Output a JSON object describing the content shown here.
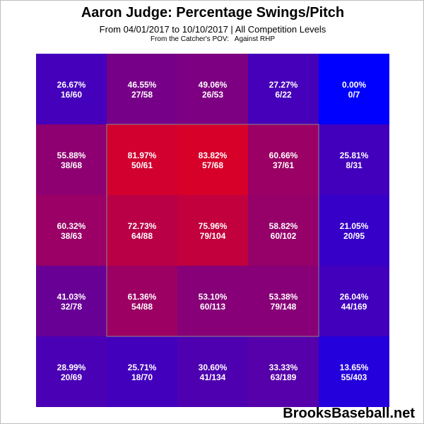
{
  "chart_data": {
    "type": "heatmap",
    "title": "Aaron Judge: Percentage Swings/Pitch",
    "subtitle": "From 04/01/2017 to 10/10/2017 | All Competition Levels",
    "pov_note": "From the Catcher's POV:   Against RHP",
    "grid": [
      [
        {
          "pct": "26.67%",
          "count": "16/60",
          "value": 26.67
        },
        {
          "pct": "46.55%",
          "count": "27/58",
          "value": 46.55
        },
        {
          "pct": "49.06%",
          "count": "26/53",
          "value": 49.06
        },
        {
          "pct": "27.27%",
          "count": "6/22",
          "value": 27.27
        },
        {
          "pct": "0.00%",
          "count": "0/7",
          "value": 0.0
        }
      ],
      [
        {
          "pct": "55.88%",
          "count": "38/68",
          "value": 55.88
        },
        {
          "pct": "81.97%",
          "count": "50/61",
          "value": 81.97
        },
        {
          "pct": "83.82%",
          "count": "57/68",
          "value": 83.82
        },
        {
          "pct": "60.66%",
          "count": "37/61",
          "value": 60.66
        },
        {
          "pct": "25.81%",
          "count": "8/31",
          "value": 25.81
        }
      ],
      [
        {
          "pct": "60.32%",
          "count": "38/63",
          "value": 60.32
        },
        {
          "pct": "72.73%",
          "count": "64/88",
          "value": 72.73
        },
        {
          "pct": "75.96%",
          "count": "79/104",
          "value": 75.96
        },
        {
          "pct": "58.82%",
          "count": "60/102",
          "value": 58.82
        },
        {
          "pct": "21.05%",
          "count": "20/95",
          "value": 21.05
        }
      ],
      [
        {
          "pct": "41.03%",
          "count": "32/78",
          "value": 41.03
        },
        {
          "pct": "61.36%",
          "count": "54/88",
          "value": 61.36
        },
        {
          "pct": "53.10%",
          "count": "60/113",
          "value": 53.1
        },
        {
          "pct": "53.38%",
          "count": "79/148",
          "value": 53.38
        },
        {
          "pct": "26.04%",
          "count": "44/169",
          "value": 26.04
        }
      ],
      [
        {
          "pct": "28.99%",
          "count": "20/69",
          "value": 28.99
        },
        {
          "pct": "25.71%",
          "count": "18/70",
          "value": 25.71
        },
        {
          "pct": "30.60%",
          "count": "41/134",
          "value": 30.6
        },
        {
          "pct": "33.33%",
          "count": "63/189",
          "value": 33.33
        },
        {
          "pct": "13.65%",
          "count": "55/403",
          "value": 13.65
        }
      ]
    ],
    "color_scale": {
      "low": "#0000ff",
      "high": "#ff0000"
    },
    "strike_zone": "rows 2-4, columns 2-4",
    "strike_zone_color": "#888888",
    "label_color": "#ffffff"
  },
  "watermark": "BrooksBaseball.net"
}
